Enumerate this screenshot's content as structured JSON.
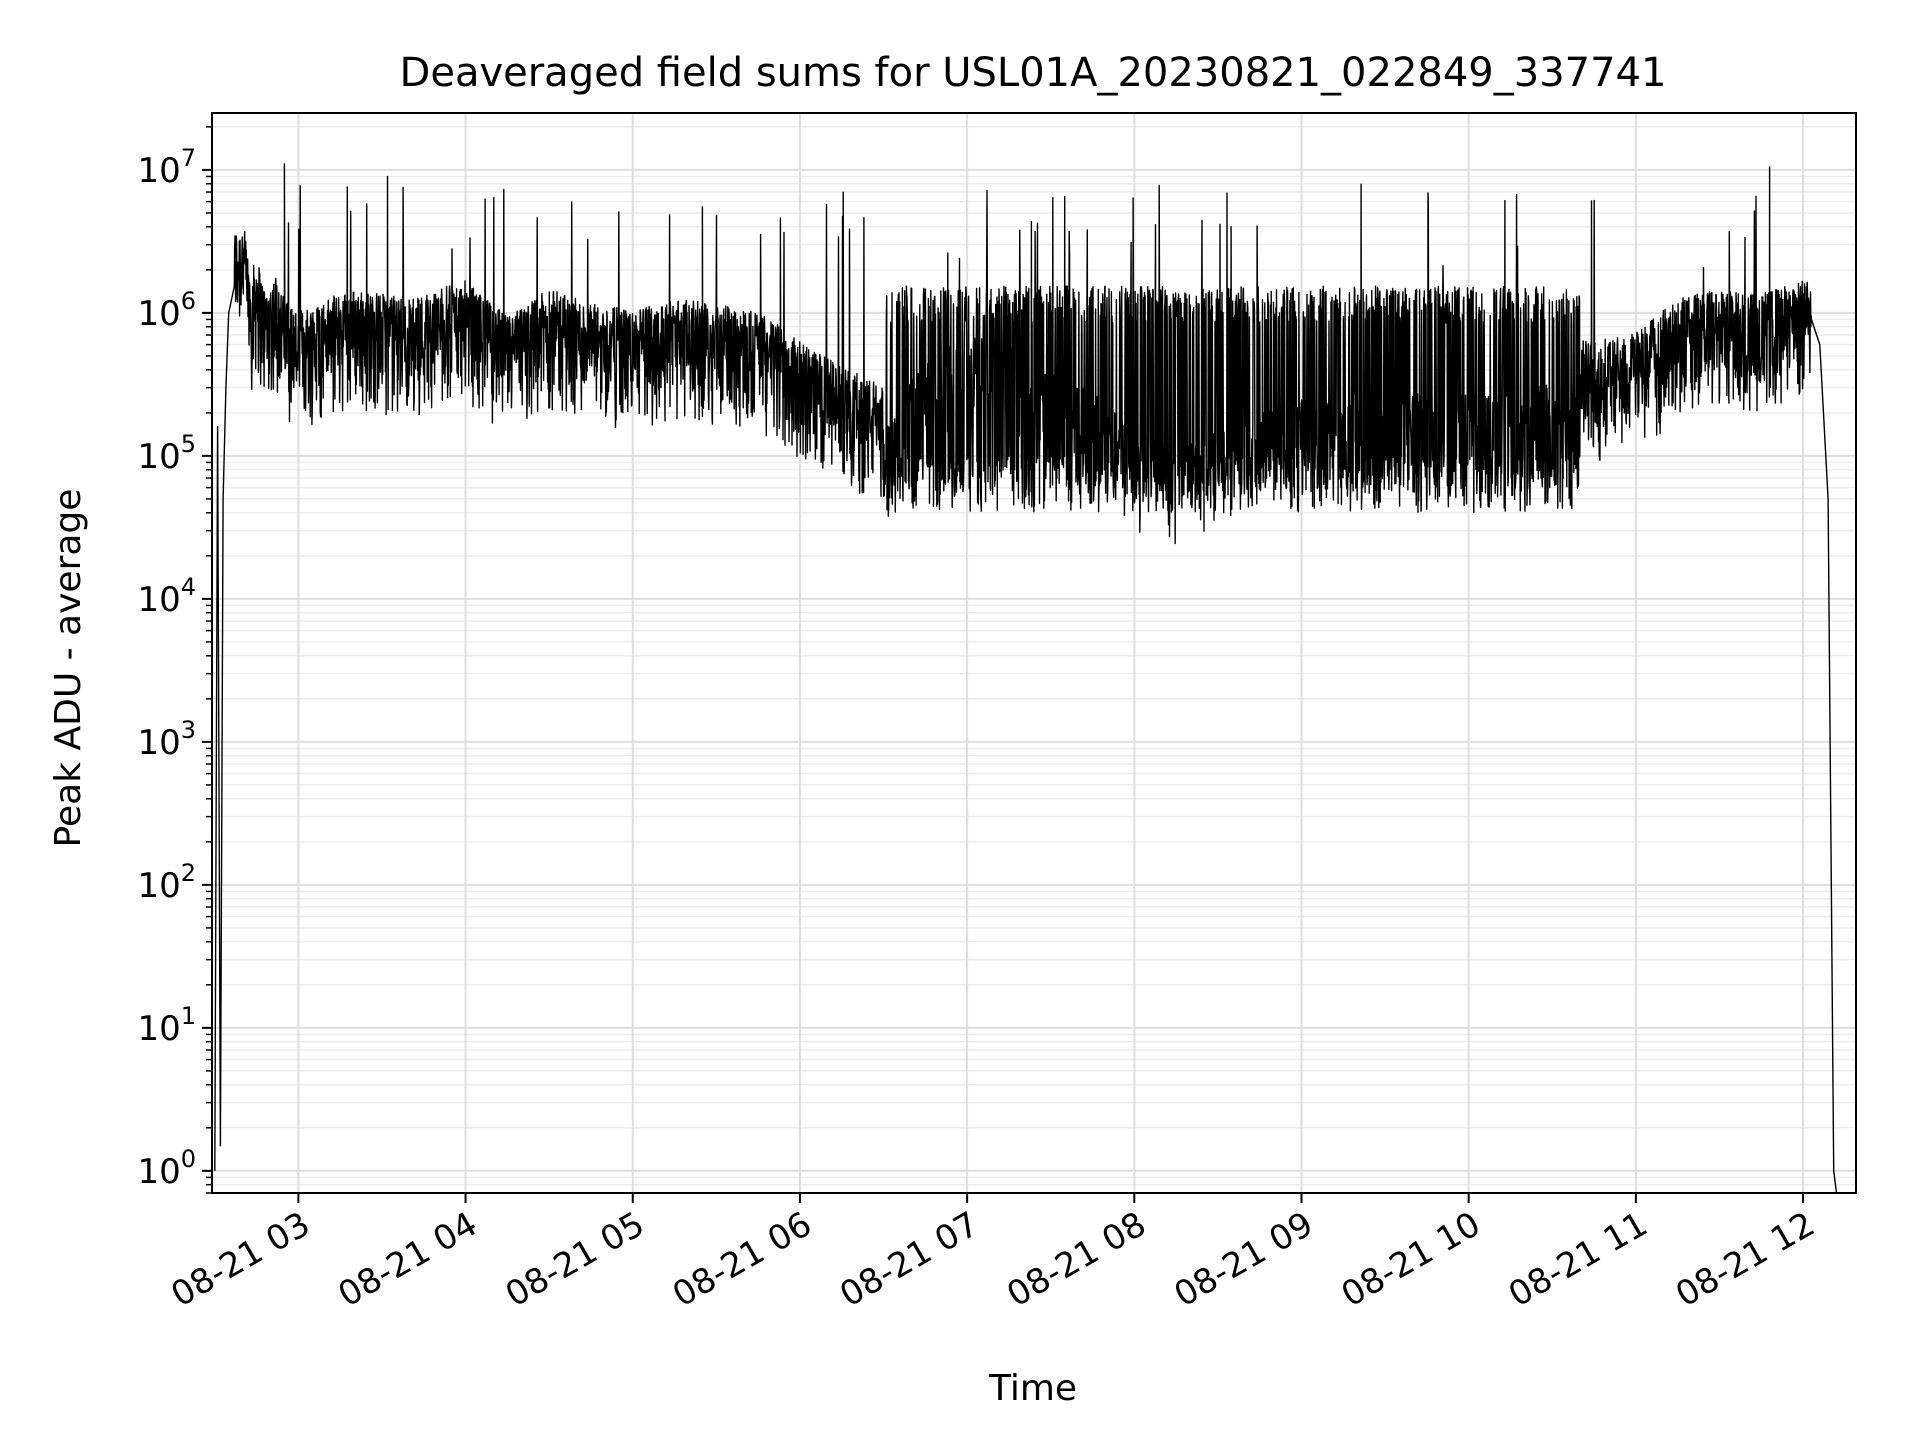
{
  "chart_data": {
    "type": "line",
    "title": "Deaveraged field sums for USL01A_20230821_022849_337741",
    "xlabel": "Time",
    "ylabel": "Peak ADU - average",
    "y_scale": "log",
    "ylim": [
      0.7,
      25000000
    ],
    "xlim": [
      "2023-08-21 02:29",
      "2023-08-21 12:19"
    ],
    "grid": true,
    "x_ticks": [
      {
        "t": "2023-08-21 03:00",
        "label": "08-21 03"
      },
      {
        "t": "2023-08-21 04:00",
        "label": "08-21 04"
      },
      {
        "t": "2023-08-21 05:00",
        "label": "08-21 05"
      },
      {
        "t": "2023-08-21 06:00",
        "label": "08-21 06"
      },
      {
        "t": "2023-08-21 07:00",
        "label": "08-21 07"
      },
      {
        "t": "2023-08-21 08:00",
        "label": "08-21 08"
      },
      {
        "t": "2023-08-21 09:00",
        "label": "08-21 09"
      },
      {
        "t": "2023-08-21 10:00",
        "label": "08-21 10"
      },
      {
        "t": "2023-08-21 11:00",
        "label": "08-21 11"
      },
      {
        "t": "2023-08-21 12:00",
        "label": "08-21 12"
      }
    ],
    "y_ticks": [
      {
        "value": 1,
        "base": "10",
        "exp": "0"
      },
      {
        "value": 10,
        "base": "10",
        "exp": "1"
      },
      {
        "value": 100,
        "base": "10",
        "exp": "2"
      },
      {
        "value": 1000,
        "base": "10",
        "exp": "3"
      },
      {
        "value": 10000,
        "base": "10",
        "exp": "4"
      },
      {
        "value": 100000,
        "base": "10",
        "exp": "5"
      },
      {
        "value": 1000000,
        "base": "10",
        "exp": "6"
      },
      {
        "value": 10000000,
        "base": "10",
        "exp": "7"
      }
    ],
    "series": [
      {
        "color": "#000000",
        "x": [
          "2023-08-21 02:30",
          "2023-08-21 02:31",
          "2023-08-21 02:32",
          "2023-08-21 02:33",
          "2023-08-21 02:34",
          "2023-08-21 02:35",
          "2023-08-21 02:37",
          "2023-08-21 02:40",
          "2023-08-21 02:43",
          "2023-08-21 02:45",
          "2023-08-21 02:48",
          "2023-08-21 02:52",
          "2023-08-21 02:55",
          "2023-08-21 03:00",
          "2023-08-21 03:10",
          "2023-08-21 03:20",
          "2023-08-21 03:30",
          "2023-08-21 03:40",
          "2023-08-21 03:50",
          "2023-08-21 04:00",
          "2023-08-21 04:15",
          "2023-08-21 04:30",
          "2023-08-21 04:45",
          "2023-08-21 05:00",
          "2023-08-21 05:15",
          "2023-08-21 05:30",
          "2023-08-21 05:45",
          "2023-08-21 06:00",
          "2023-08-21 06:15",
          "2023-08-21 06:30",
          "2023-08-21 06:45",
          "2023-08-21 07:00",
          "2023-08-21 07:15",
          "2023-08-21 07:30",
          "2023-08-21 07:45",
          "2023-08-21 08:00",
          "2023-08-21 08:15",
          "2023-08-21 08:30",
          "2023-08-21 08:45",
          "2023-08-21 09:00",
          "2023-08-21 09:15",
          "2023-08-21 09:30",
          "2023-08-21 09:45",
          "2023-08-21 10:00",
          "2023-08-21 10:15",
          "2023-08-21 10:30",
          "2023-08-21 10:45",
          "2023-08-21 11:00",
          "2023-08-21 11:15",
          "2023-08-21 11:30",
          "2023-08-21 11:45",
          "2023-08-21 12:00",
          "2023-08-21 12:03",
          "2023-08-21 12:06",
          "2023-08-21 12:09",
          "2023-08-21 12:11",
          "2023-08-21 12:12"
        ],
        "y": [
          1.0,
          160000,
          1.5,
          50000,
          300000,
          1000000,
          1800000,
          2200000,
          900000,
          1200000,
          700000,
          900000,
          600000,
          500000,
          600000,
          700000,
          650000,
          600000,
          700000,
          800000,
          450000,
          700000,
          550000,
          500000,
          600000,
          550000,
          500000,
          300000,
          200000,
          150000,
          500000,
          700000,
          600000,
          400000,
          300000,
          150000,
          120000,
          150000,
          200000,
          250000,
          300000,
          250000,
          280000,
          300000,
          300000,
          320000,
          300000,
          350000,
          600000,
          700000,
          650000,
          800000,
          900000,
          600000,
          50000,
          1.0,
          0.7
        ]
      }
    ],
    "notes": "Dense noisy trace; band roughly 2e5-1.5e6 with spikes up to ~1e7 and dips down to ~4e4 between 06:30 and 10:30."
  }
}
